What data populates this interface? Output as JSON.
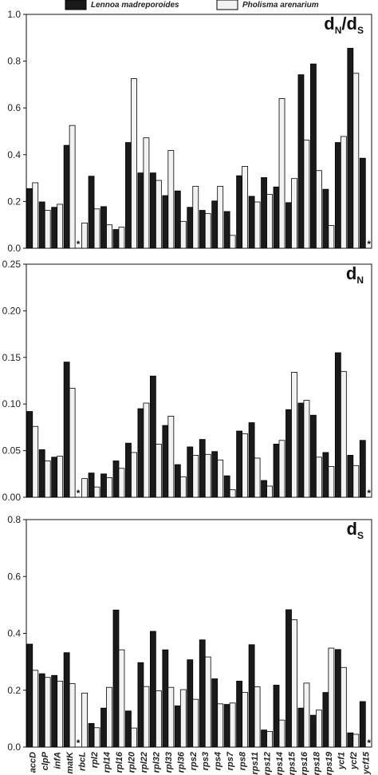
{
  "chart_data": {
    "type": "bar",
    "legend": {
      "placement": "top",
      "entries": [
        {
          "name": "Lennoa madreporoides",
          "color": "#1a1a1a"
        },
        {
          "name": "Pholisma arenarium",
          "color": "#f2f2f2"
        }
      ]
    },
    "categories": [
      "accD",
      "clpP",
      "infA",
      "matK",
      "rbcL",
      "rpl2",
      "rpl14",
      "rpl16",
      "rpl20",
      "rpl22",
      "rpl32",
      "rpl33",
      "rpl36",
      "rps2",
      "rps3",
      "rps4",
      "rps7",
      "rps8",
      "rps11",
      "rps12",
      "rps14",
      "rps15",
      "rps16",
      "rps18",
      "rps19",
      "ycf1",
      "ycf2",
      "ycf15"
    ],
    "panels": [
      {
        "id": "dnds",
        "title": "d",
        "title_sub1": "N",
        "title_slash": "/d",
        "title_sub2": "S",
        "ylim": [
          0,
          1.0
        ],
        "yticks": [
          "0.0",
          "0.2",
          "0.4",
          "0.6",
          "0.8",
          "1.0"
        ],
        "ytick_values": [
          0,
          0.2,
          0.4,
          0.6,
          0.8,
          1.0
        ],
        "series": [
          {
            "name": "Lennoa madreporoides",
            "values": [
              0.255,
              0.198,
              0.175,
              0.44,
              0.0,
              0.308,
              0.178,
              0.08,
              0.452,
              0.322,
              0.322,
              0.225,
              0.245,
              0.175,
              0.162,
              0.202,
              0.157,
              0.31,
              0.222,
              0.302,
              0.262,
              0.195,
              0.742,
              0.788,
              0.252,
              0.452,
              0.855,
              0.385
            ]
          },
          {
            "name": "Pholisma arenarium",
            "values": [
              0.28,
              0.162,
              0.188,
              0.525,
              0.108,
              0.168,
              0.1,
              0.09,
              0.725,
              0.472,
              0.29,
              0.418,
              0.115,
              0.265,
              0.148,
              0.265,
              0.055,
              0.35,
              0.198,
              0.23,
              0.64,
              0.298,
              0.462,
              0.332,
              0.097,
              0.478,
              0.748,
              0.0
            ]
          }
        ],
        "stars": [
          "*",
          "*"
        ],
        "star_categories": [
          "rbcL",
          "ycf15"
        ]
      },
      {
        "id": "dn",
        "title": "d",
        "title_sub1": "N",
        "ylim": [
          0,
          0.25
        ],
        "yticks": [
          "0.00",
          "0.05",
          "0.10",
          "0.15",
          "0.20",
          "0.25"
        ],
        "ytick_values": [
          0,
          0.05,
          0.1,
          0.15,
          0.2,
          0.25
        ],
        "series": [
          {
            "name": "Lennoa madreporoides",
            "values": [
              0.092,
              0.051,
              0.043,
              0.145,
              0.0,
              0.026,
              0.025,
              0.039,
              0.058,
              0.095,
              0.13,
              0.077,
              0.035,
              0.054,
              0.062,
              0.049,
              0.023,
              0.071,
              0.08,
              0.018,
              0.057,
              0.094,
              0.101,
              0.088,
              0.048,
              0.155,
              0.045,
              0.061
            ]
          },
          {
            "name": "Pholisma arenarium",
            "values": [
              0.076,
              0.039,
              0.044,
              0.117,
              0.02,
              0.011,
              0.021,
              0.031,
              0.048,
              0.101,
              0.057,
              0.087,
              0.022,
              0.045,
              0.046,
              0.04,
              0.008,
              0.068,
              0.042,
              0.012,
              0.061,
              0.134,
              0.104,
              0.043,
              0.033,
              0.135,
              0.034,
              0.0
            ]
          }
        ],
        "stars": [
          "*",
          "*"
        ],
        "star_categories": [
          "rbcL",
          "ycf15"
        ]
      },
      {
        "id": "ds",
        "title": "d",
        "title_sub1": "S",
        "ylim": [
          0,
          0.8
        ],
        "yticks": [
          "0.0",
          "0.2",
          "0.4",
          "0.6",
          "0.8"
        ],
        "ytick_values": [
          0,
          0.2,
          0.4,
          0.6,
          0.8
        ],
        "series": [
          {
            "name": "Lennoa madreporoides",
            "values": [
              0.362,
              0.258,
              0.252,
              0.332,
              0.0,
              0.083,
              0.137,
              0.482,
              0.127,
              0.297,
              0.407,
              0.342,
              0.145,
              0.307,
              0.377,
              0.24,
              0.15,
              0.232,
              0.36,
              0.06,
              0.218,
              0.483,
              0.137,
              0.112,
              0.192,
              0.343,
              0.05,
              0.16
            ]
          },
          {
            "name": "Pholisma arenarium",
            "values": [
              0.27,
              0.245,
              0.232,
              0.223,
              0.19,
              0.068,
              0.21,
              0.342,
              0.067,
              0.213,
              0.198,
              0.21,
              0.202,
              0.168,
              0.317,
              0.152,
              0.155,
              0.192,
              0.212,
              0.055,
              0.095,
              0.448,
              0.225,
              0.13,
              0.348,
              0.28,
              0.045,
              0.0
            ]
          }
        ],
        "stars": [
          "*",
          "*"
        ],
        "star_categories": [
          "rbcL",
          "ycf15"
        ]
      }
    ]
  }
}
